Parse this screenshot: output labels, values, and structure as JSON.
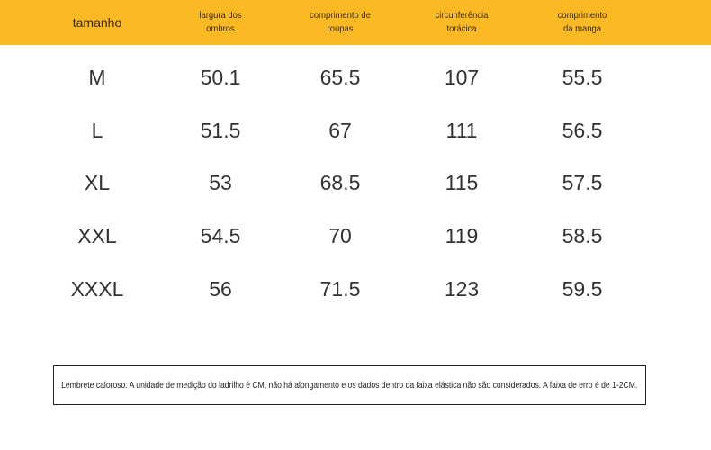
{
  "header": {
    "columns": [
      "tamanho",
      "largura dos\nombros",
      "comprimento de\nroupas",
      "circunferência\ntorácica",
      "comprimento\nda manga"
    ]
  },
  "rows": [
    [
      "M",
      "50.1",
      "65.5",
      "107",
      "55.5"
    ],
    [
      "L",
      "51.5",
      "67",
      "111",
      "56.5"
    ],
    [
      "XL",
      "53",
      "68.5",
      "115",
      "57.5"
    ],
    [
      "XXL",
      "54.5",
      "70",
      "119",
      "58.5"
    ],
    [
      "XXXL",
      "56",
      "71.5",
      "123",
      "59.5"
    ]
  ],
  "note": "Lembrete caloroso: A unidade de medição do ladrilho é CM, não há alongamento e os dados dentro da faixa elástica não são considerados. A faixa de erro é de 1-2CM.",
  "colors": {
    "header_bg": "#fbb923",
    "text": "#333333"
  }
}
